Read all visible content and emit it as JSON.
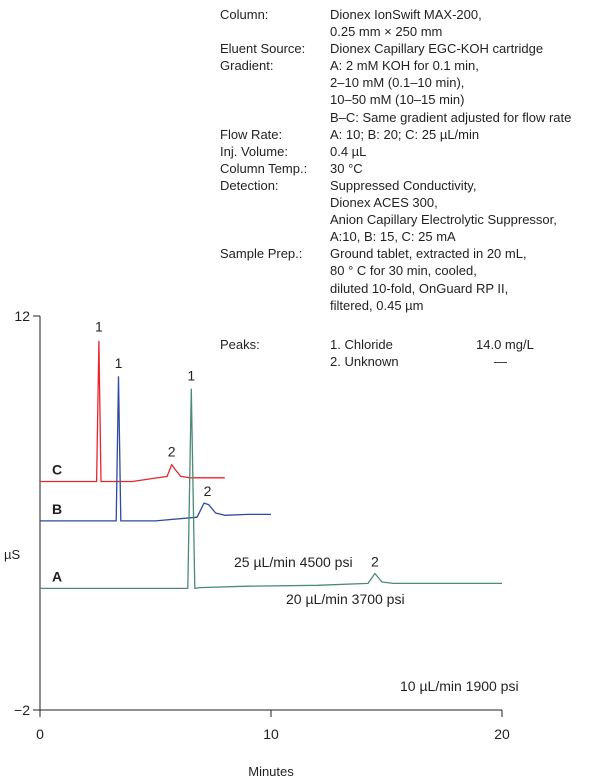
{
  "conditions": [
    {
      "label": "Column:",
      "lines": [
        "Dionex IonSwift MAX-200,",
        "0.25 mm × 250 mm"
      ]
    },
    {
      "label": "Eluent  Source:",
      "lines": [
        "Dionex Capillary EGC-KOH cartridge"
      ]
    },
    {
      "label": "Gradient:",
      "lines": [
        "A: 2 mM KOH for 0.1 min,",
        "2–10 mM (0.1–10 min),",
        "10–50 mM (10–15 min)",
        "B–C: Same gradient adjusted for flow rate"
      ]
    },
    {
      "label": "Flow Rate:",
      "lines": [
        "A: 10; B: 20; C: 25 µL/min"
      ]
    },
    {
      "label": "Inj. Volume:",
      "lines": [
        "0.4 µL"
      ]
    },
    {
      "label": "Column Temp.:",
      "lines": [
        "30 °C"
      ]
    },
    {
      "label": "Detection:",
      "lines": [
        "Suppressed Conductivity,",
        "Dionex ACES 300,",
        "Anion Capillary Electrolytic Suppressor,",
        "A:10, B: 15, C: 25 mA"
      ]
    },
    {
      "label": "Sample Prep.:",
      "lines": [
        "Ground tablet, extracted in 20 mL,",
        "80 ° C for 30 min, cooled,",
        "diluted 10-fold, OnGuard RP II,",
        "filtered, 0.45 µm"
      ]
    }
  ],
  "peaks_table": {
    "label": "Peaks:",
    "rows": [
      {
        "name": "1. Chloride",
        "conc": "14.0 mg/L"
      },
      {
        "name": "2. Unknown",
        "conc": "—"
      }
    ]
  },
  "chart_data": {
    "type": "line",
    "xlabel": "Minutes",
    "ylabel": "µS",
    "xlim": [
      0,
      20
    ],
    "ylim": [
      -2,
      12
    ],
    "xticks": [
      0,
      10,
      20
    ],
    "xtick_labels": [
      "0",
      "10",
      "20"
    ],
    "yticks": [
      -2,
      12
    ],
    "ytick_labels": [
      "−2",
      "12"
    ],
    "grid": false,
    "series": [
      {
        "name": "C",
        "label": "25 µL/min 4500 psi",
        "color": "#e8262d",
        "x": [
          0.0,
          2.45,
          2.55,
          2.64,
          2.8,
          4.0,
          5.5,
          5.7,
          5.85,
          6.1,
          6.5,
          7.5,
          8.0
        ],
        "y": [
          6.12,
          6.12,
          11.1,
          6.12,
          6.12,
          6.12,
          6.3,
          6.72,
          6.55,
          6.3,
          6.25,
          6.25,
          6.25
        ]
      },
      {
        "name": "B",
        "label": "20 µL/min 3700 psi",
        "color": "#2e4b9e",
        "x": [
          0.0,
          3.3,
          3.4,
          3.5,
          3.7,
          5.0,
          6.8,
          7.1,
          7.3,
          7.6,
          8.0,
          9.0,
          10.0
        ],
        "y": [
          4.72,
          4.72,
          9.84,
          4.72,
          4.72,
          4.72,
          4.85,
          5.35,
          5.3,
          5.0,
          4.92,
          4.95,
          4.95
        ]
      },
      {
        "name": "A",
        "label": "10 µL/min 1900 psi",
        "color": "#4b8b73",
        "x": [
          0.0,
          6.4,
          6.55,
          6.7,
          6.9,
          9.0,
          12.0,
          14.2,
          14.5,
          14.8,
          15.3,
          17.0,
          20.0
        ],
        "y": [
          2.32,
          2.32,
          9.4,
          2.32,
          2.35,
          2.4,
          2.43,
          2.5,
          2.85,
          2.55,
          2.5,
          2.5,
          2.5
        ]
      }
    ],
    "annotations": [
      {
        "text": "1",
        "x": 2.55,
        "y": 11.45
      },
      {
        "text": "1",
        "x": 3.4,
        "y": 10.15
      },
      {
        "text": "1",
        "x": 6.55,
        "y": 9.7
      },
      {
        "text": "2",
        "x": 5.7,
        "y": 7.0
      },
      {
        "text": "2",
        "x": 7.25,
        "y": 5.6
      },
      {
        "text": "2",
        "x": 14.5,
        "y": 3.1
      }
    ]
  }
}
